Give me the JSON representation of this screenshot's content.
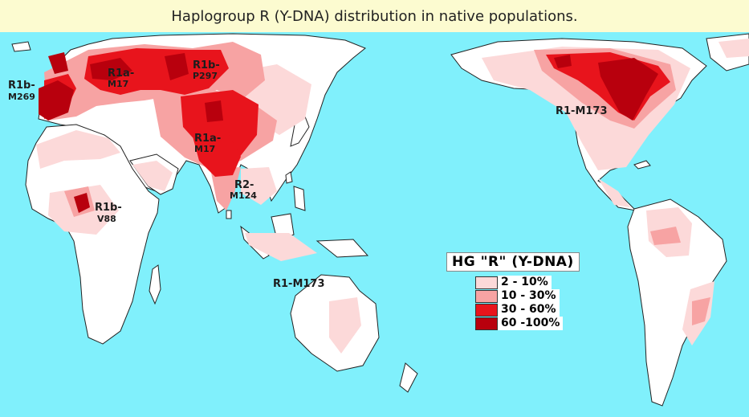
{
  "title": "Haplogroup R (Y-DNA) distribution in native populations.",
  "colors": {
    "ocean": "#80f0fc",
    "land": "#ffffff",
    "level_1": "#fcd9d9",
    "level_2": "#f7a3a3",
    "level_3": "#e8141c",
    "level_4": "#b8000d"
  },
  "labels": {
    "r1b_m269": [
      "R1b-",
      "M269"
    ],
    "r1a_m17_europe": [
      "R1a-",
      "M17"
    ],
    "r1b_p297": [
      "R1b-",
      "P297"
    ],
    "r1a_m17_asia": [
      "R1a-",
      "M17"
    ],
    "r2_m124": [
      "R2-",
      "M124"
    ],
    "r1b_v88": [
      "R1b-",
      "V88"
    ],
    "r1_m173_oceania": "R1-M173",
    "r1_m173_america": "R1-M173"
  },
  "legend": {
    "title": "HG \"R\" (Y-DNA)",
    "items": [
      {
        "label": "2  - 10%",
        "color": "#fcd9d9"
      },
      {
        "label": "10 - 30%",
        "color": "#f7a3a3"
      },
      {
        "label": "30 - 60%",
        "color": "#e8141c"
      },
      {
        "label": "60 -100%",
        "color": "#b8000d"
      }
    ]
  }
}
